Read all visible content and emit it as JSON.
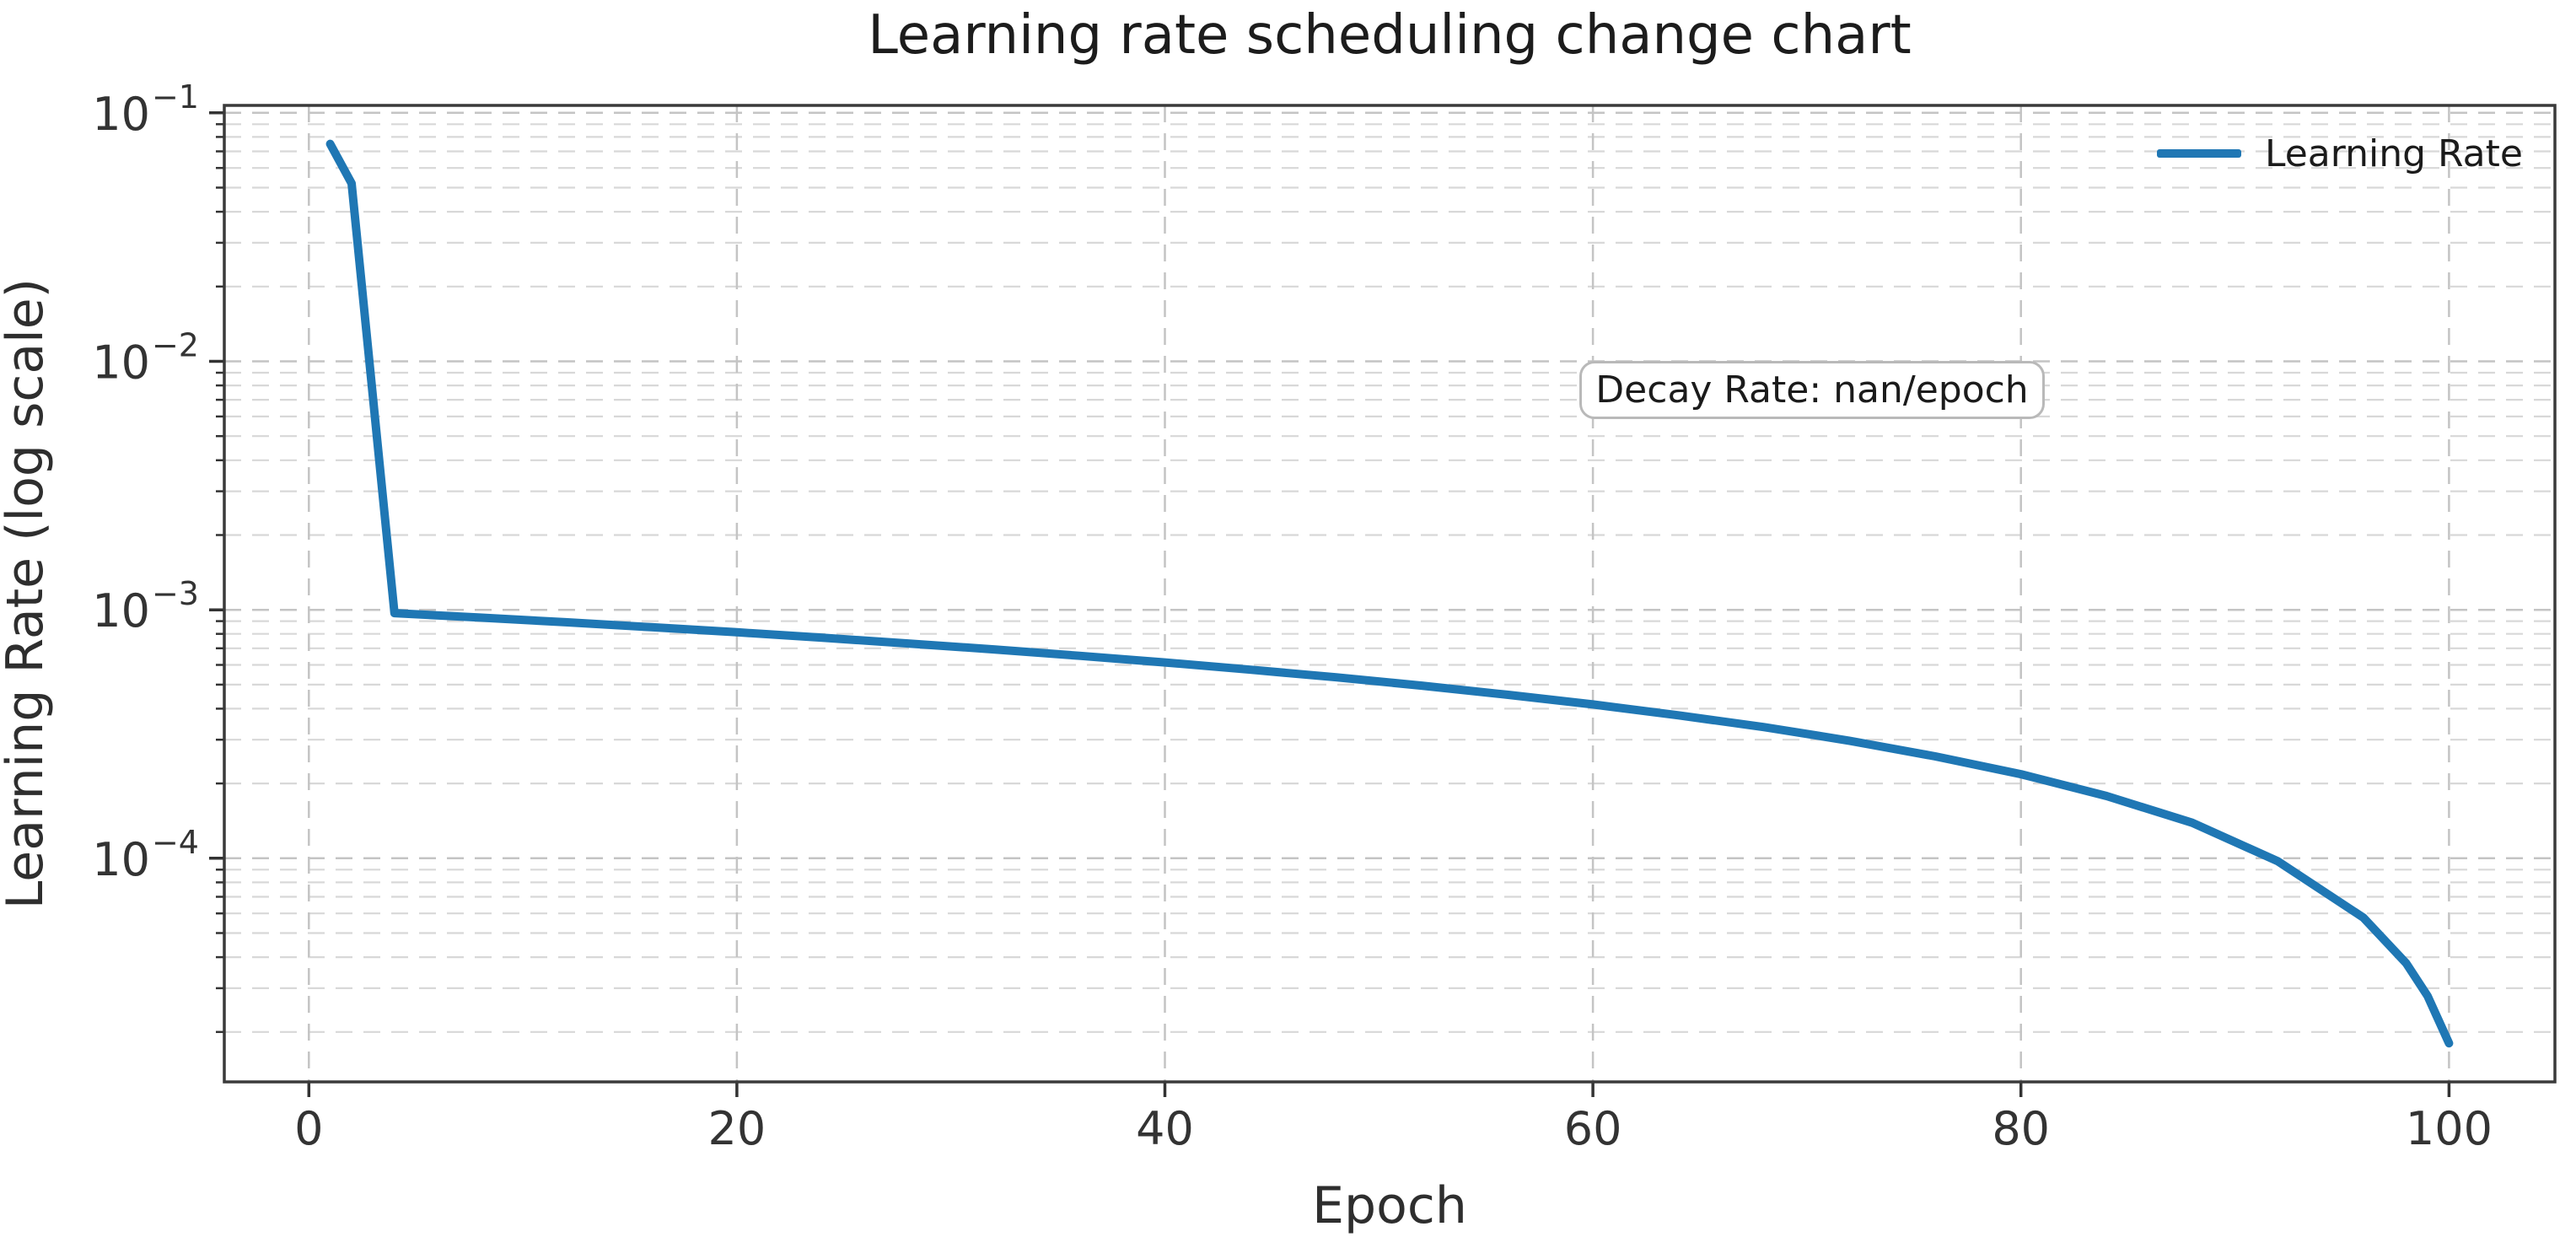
{
  "chart_data": {
    "type": "line",
    "title": "Learning rate scheduling change chart",
    "xlabel": "Epoch",
    "ylabel": "Learning Rate (log scale)",
    "yscale": "log",
    "grid": {
      "major": true,
      "minor": true,
      "style": "dashed"
    },
    "xlim": [
      -3.95,
      104.95
    ],
    "ylim_log10": [
      -4.9,
      -0.97
    ],
    "x_ticks": [
      0,
      20,
      40,
      60,
      80,
      100
    ],
    "y_tick_exponents": [
      -1,
      -2,
      -3,
      -4
    ],
    "legend": {
      "position": "upper right",
      "frame": false,
      "entries": [
        {
          "label": "Learning Rate",
          "color": "#1f77b4"
        }
      ]
    },
    "annotation": {
      "text": "Decay Rate: nan/epoch"
    },
    "series": [
      {
        "name": "Learning Rate",
        "color": "#1f77b4",
        "points": [
          [
            1,
            0.075
          ],
          [
            2,
            0.052
          ],
          [
            3,
            0.0071
          ],
          [
            4,
            0.00097
          ],
          [
            8,
            0.00093
          ],
          [
            12,
            0.000891
          ],
          [
            16,
            0.000851
          ],
          [
            20,
            0.000812
          ],
          [
            24,
            0.000772
          ],
          [
            28,
            0.000732
          ],
          [
            32,
            0.000693
          ],
          [
            36,
            0.000653
          ],
          [
            40,
            0.000614
          ],
          [
            44,
            0.000574
          ],
          [
            48,
            0.000535
          ],
          [
            52,
            0.000495
          ],
          [
            56,
            0.000455
          ],
          [
            60,
            0.000416
          ],
          [
            64,
            0.000376
          ],
          [
            68,
            0.000337
          ],
          [
            72,
            0.000297
          ],
          [
            76,
            0.000257
          ],
          [
            80,
            0.000218
          ],
          [
            84,
            0.000178
          ],
          [
            88,
            0.000139
          ],
          [
            92,
            9.73e-05
          ],
          [
            96,
            5.77e-05
          ],
          [
            98,
            3.78e-05
          ],
          [
            99,
            2.79e-05
          ],
          [
            100,
            1.8e-05
          ]
        ]
      }
    ]
  },
  "colors": {
    "line": "#1f77b4",
    "spine": "#3a3a3a",
    "grid_major": "#c4c4c4",
    "grid_minor": "#d8d8d8",
    "title_text": "#1c1c1c",
    "axis_text": "#2e2e2e",
    "tick_text": "#333333",
    "annotation_border": "#b9b9b9",
    "background": "#ffffff"
  }
}
